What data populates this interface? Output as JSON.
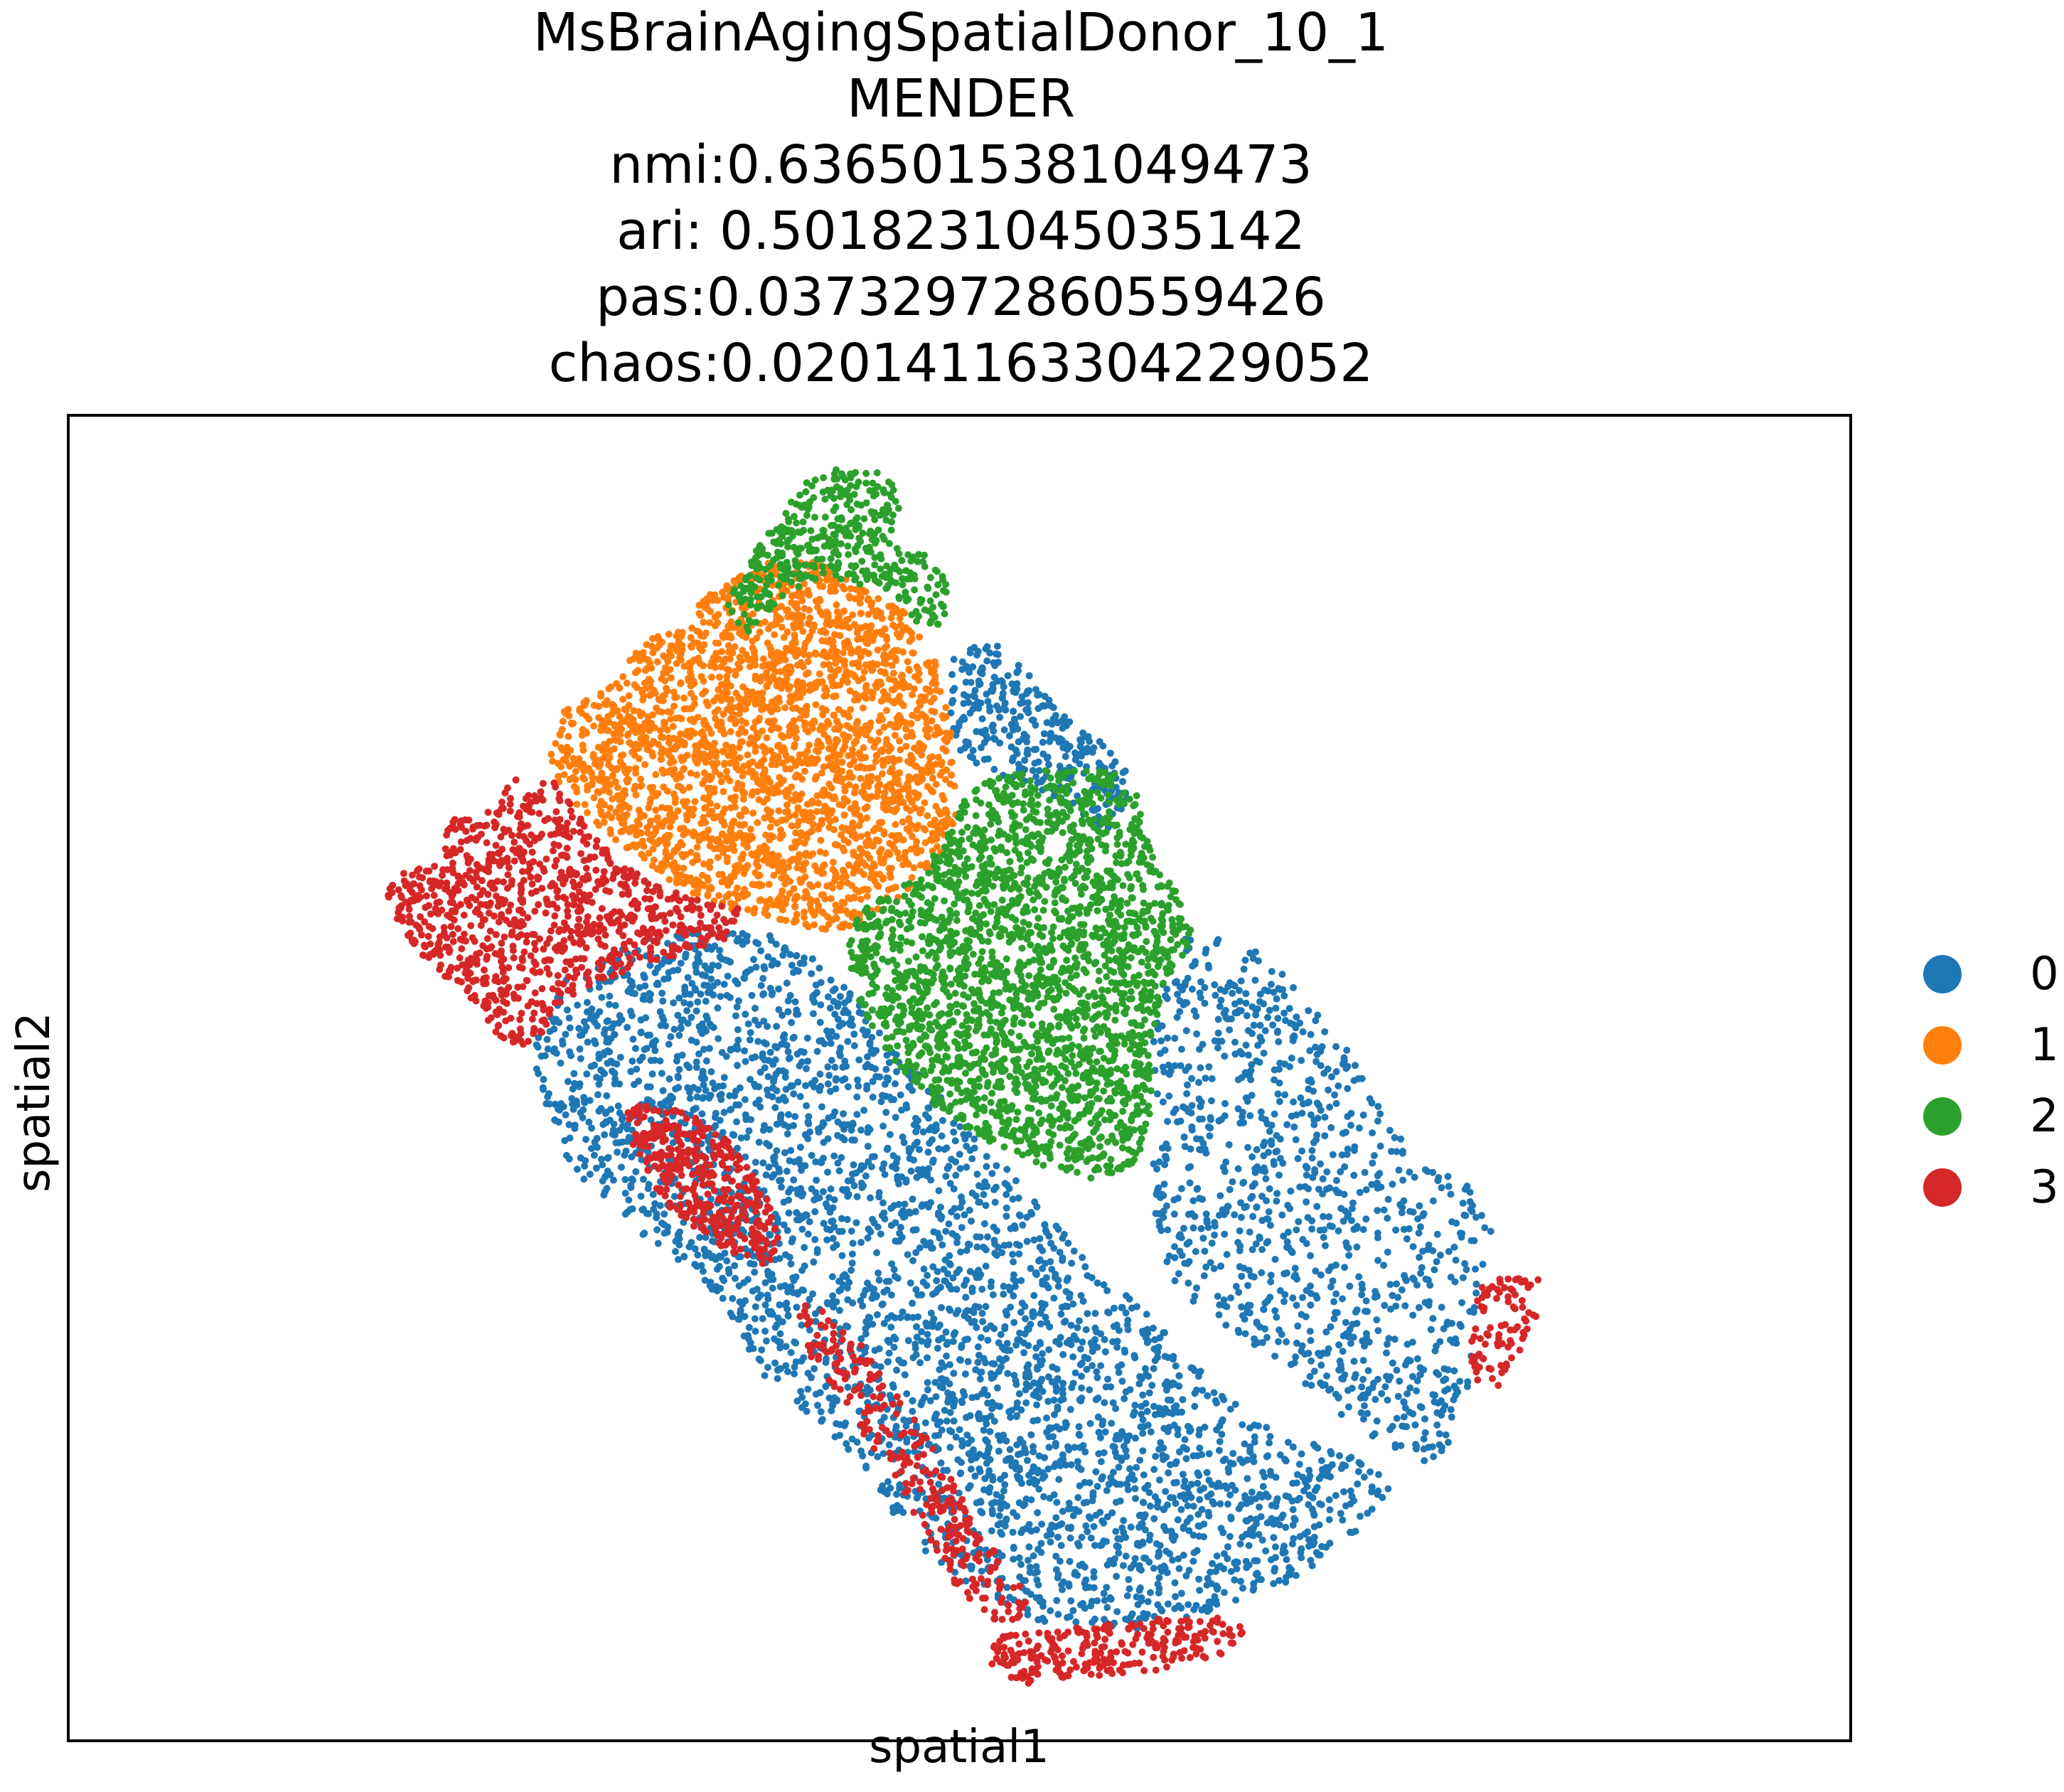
{
  "chart_data": {
    "type": "scatter",
    "title_lines": [
      "MsBrainAgingSpatialDonor_10_1",
      "MENDER",
      "nmi:0.6365015381049473",
      "ari: 0.5018231045035142",
      "pas:0.03732972860559426",
      "chaos:0.020141163304229052"
    ],
    "xlabel": "spatial1",
    "ylabel": "spatial2",
    "xticks": [],
    "yticks": [],
    "grid": false,
    "legend_position": "right, outside plot",
    "series": [
      {
        "name": "0",
        "color": "#1f77b4"
      },
      {
        "name": "1",
        "color": "#ff7f0e"
      },
      {
        "name": "2",
        "color": "#2ca02c"
      },
      {
        "name": "3",
        "color": "#d62728"
      }
    ]
  }
}
